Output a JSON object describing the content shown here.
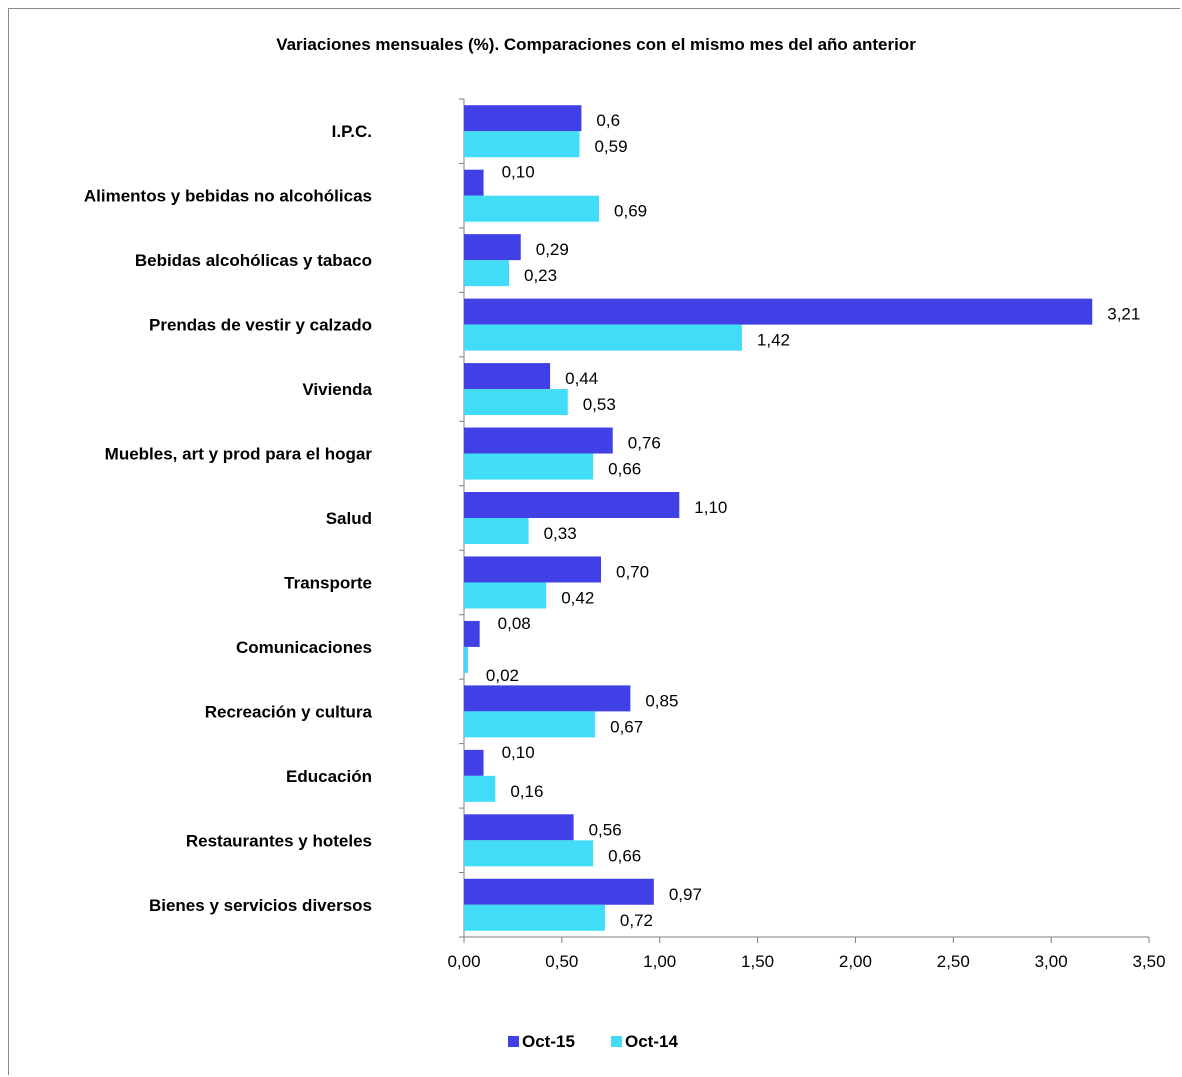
{
  "chart_data": {
    "type": "bar",
    "orientation": "horizontal",
    "title": "Variaciones mensuales (%). Comparaciones con el mismo mes del año anterior",
    "categories": [
      "I.P.C.",
      "Alimentos y bebidas no alcohólicas",
      "Bebidas alcohólicas y tabaco",
      "Prendas de vestir y calzado",
      "Vivienda",
      "Muebles, art y prod para el hogar",
      "Salud",
      "Transporte",
      "Comunicaciones",
      "Recreación y cultura",
      "Educación",
      "Restaurantes y hoteles",
      "Bienes y servicios diversos"
    ],
    "series": [
      {
        "name": "Oct-15",
        "color": "#4040e6",
        "values": [
          0.6,
          0.1,
          0.29,
          3.21,
          0.44,
          0.76,
          1.1,
          0.7,
          0.08,
          0.85,
          0.1,
          0.56,
          0.97
        ],
        "labels": [
          "0,6",
          "0,10",
          "0,29",
          "3,21",
          "0,44",
          "0,76",
          "1,10",
          "0,70",
          "0,08",
          "0,85",
          "0,10",
          "0,56",
          "0,97"
        ]
      },
      {
        "name": "Oct-14",
        "color": "#40dcf8",
        "values": [
          0.59,
          0.69,
          0.23,
          1.42,
          0.53,
          0.66,
          0.33,
          0.42,
          0.02,
          0.67,
          0.16,
          0.66,
          0.72
        ],
        "labels": [
          "0,59",
          "0,69",
          "0,23",
          "1,42",
          "0,53",
          "0,66",
          "0,33",
          "0,42",
          "0,02",
          "0,67",
          "0,16",
          "0,66",
          "0,72"
        ]
      }
    ],
    "xlim": [
      0,
      3.5
    ],
    "xticks": [
      0,
      0.5,
      1,
      1.5,
      2,
      2.5,
      3,
      3.5
    ],
    "xtick_labels": [
      "0,00",
      "0,50",
      "1,00",
      "1,50",
      "2,00",
      "2,50",
      "3,00",
      "3,50"
    ],
    "grid": false,
    "legend_position": "bottom"
  }
}
